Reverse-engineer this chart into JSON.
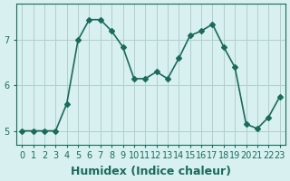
{
  "x": [
    0,
    1,
    2,
    3,
    4,
    5,
    6,
    7,
    8,
    9,
    10,
    11,
    12,
    13,
    14,
    15,
    16,
    17,
    18,
    19,
    20,
    21,
    22,
    23
  ],
  "y": [
    5.0,
    5.0,
    5.0,
    5.0,
    5.6,
    7.0,
    7.45,
    7.45,
    7.2,
    6.85,
    6.15,
    6.15,
    6.3,
    6.15,
    6.6,
    7.1,
    7.2,
    7.35,
    6.85,
    6.4,
    5.15,
    5.05,
    5.3,
    5.75
  ],
  "line_color": "#1a6b5a",
  "marker": "D",
  "marker_size": 3,
  "bg_color": "#d8f0ef",
  "grid_color": "#b0d0cc",
  "xlabel": "Humidex (Indice chaleur)",
  "xlabel_fontsize": 9,
  "tick_fontsize": 7,
  "ylabel_ticks": [
    5,
    6,
    7
  ],
  "xlim": [
    -0.5,
    23.5
  ],
  "ylim": [
    4.7,
    7.8
  ],
  "line_width": 1.2
}
